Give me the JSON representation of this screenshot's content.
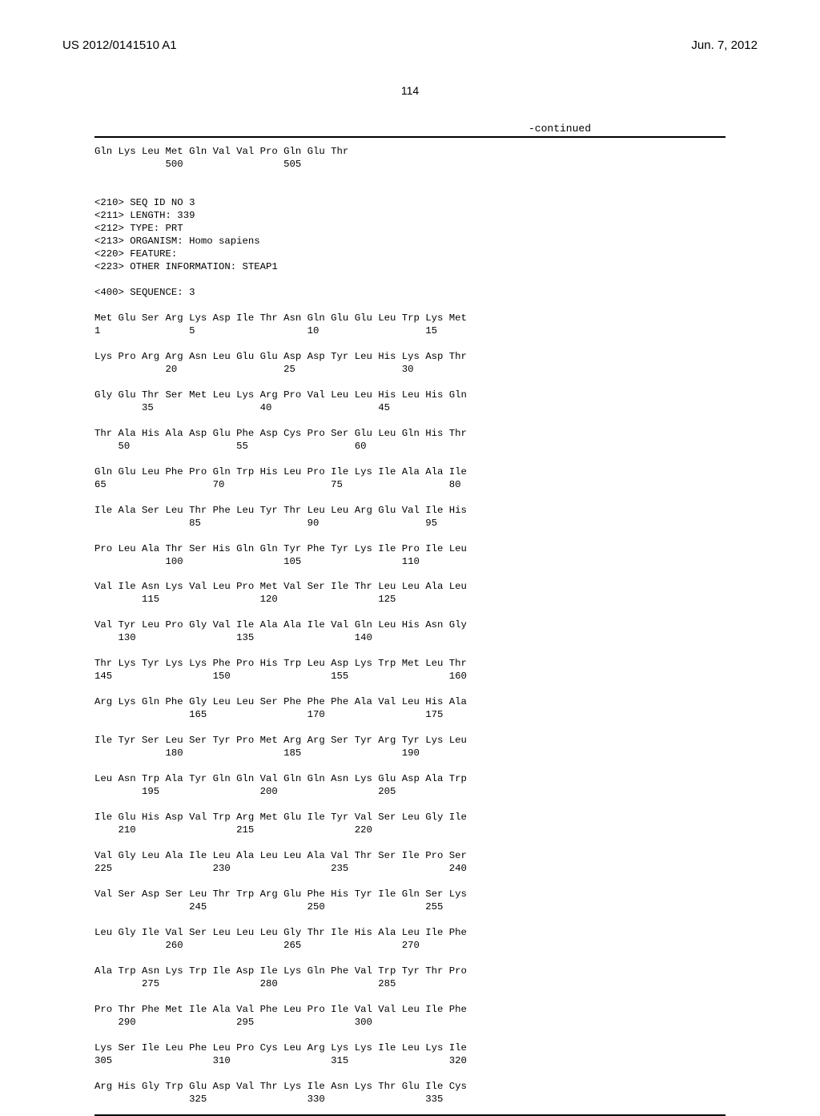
{
  "meta": {
    "pub_number": "US 2012/0141510 A1",
    "pub_date": "Jun. 7, 2012",
    "page_number": "114",
    "continued_label": "-continued"
  },
  "tail_seq": {
    "aa_line": "Gln Lys Leu Met Gln Val Val Pro Gln Glu Thr",
    "num_line": "            500                 505"
  },
  "seq_header": {
    "lines": [
      "<210> SEQ ID NO 3",
      "<211> LENGTH: 339",
      "<212> TYPE: PRT",
      "<213> ORGANISM: Homo sapiens",
      "<220> FEATURE:",
      "<223> OTHER INFORMATION: STEAP1",
      "",
      "<400> SEQUENCE: 3"
    ]
  },
  "sequence_rows": [
    {
      "aa": "Met Glu Ser Arg Lys Asp Ile Thr Asn Gln Glu Glu Leu Trp Lys Met",
      "num": "1               5                   10                  15"
    },
    {
      "aa": "Lys Pro Arg Arg Asn Leu Glu Glu Asp Asp Tyr Leu His Lys Asp Thr",
      "num": "            20                  25                  30"
    },
    {
      "aa": "Gly Glu Thr Ser Met Leu Lys Arg Pro Val Leu Leu His Leu His Gln",
      "num": "        35                  40                  45"
    },
    {
      "aa": "Thr Ala His Ala Asp Glu Phe Asp Cys Pro Ser Glu Leu Gln His Thr",
      "num": "    50                  55                  60"
    },
    {
      "aa": "Gln Glu Leu Phe Pro Gln Trp His Leu Pro Ile Lys Ile Ala Ala Ile",
      "num": "65                  70                  75                  80"
    },
    {
      "aa": "Ile Ala Ser Leu Thr Phe Leu Tyr Thr Leu Leu Arg Glu Val Ile His",
      "num": "                85                  90                  95"
    },
    {
      "aa": "Pro Leu Ala Thr Ser His Gln Gln Tyr Phe Tyr Lys Ile Pro Ile Leu",
      "num": "            100                 105                 110"
    },
    {
      "aa": "Val Ile Asn Lys Val Leu Pro Met Val Ser Ile Thr Leu Leu Ala Leu",
      "num": "        115                 120                 125"
    },
    {
      "aa": "Val Tyr Leu Pro Gly Val Ile Ala Ala Ile Val Gln Leu His Asn Gly",
      "num": "    130                 135                 140"
    },
    {
      "aa": "Thr Lys Tyr Lys Lys Phe Pro His Trp Leu Asp Lys Trp Met Leu Thr",
      "num": "145                 150                 155                 160"
    },
    {
      "aa": "Arg Lys Gln Phe Gly Leu Leu Ser Phe Phe Phe Ala Val Leu His Ala",
      "num": "                165                 170                 175"
    },
    {
      "aa": "Ile Tyr Ser Leu Ser Tyr Pro Met Arg Arg Ser Tyr Arg Tyr Lys Leu",
      "num": "            180                 185                 190"
    },
    {
      "aa": "Leu Asn Trp Ala Tyr Gln Gln Val Gln Gln Asn Lys Glu Asp Ala Trp",
      "num": "        195                 200                 205"
    },
    {
      "aa": "Ile Glu His Asp Val Trp Arg Met Glu Ile Tyr Val Ser Leu Gly Ile",
      "num": "    210                 215                 220"
    },
    {
      "aa": "Val Gly Leu Ala Ile Leu Ala Leu Leu Ala Val Thr Ser Ile Pro Ser",
      "num": "225                 230                 235                 240"
    },
    {
      "aa": "Val Ser Asp Ser Leu Thr Trp Arg Glu Phe His Tyr Ile Gln Ser Lys",
      "num": "                245                 250                 255"
    },
    {
      "aa": "Leu Gly Ile Val Ser Leu Leu Leu Gly Thr Ile His Ala Leu Ile Phe",
      "num": "            260                 265                 270"
    },
    {
      "aa": "Ala Trp Asn Lys Trp Ile Asp Ile Lys Gln Phe Val Trp Tyr Thr Pro",
      "num": "        275                 280                 285"
    },
    {
      "aa": "Pro Thr Phe Met Ile Ala Val Phe Leu Pro Ile Val Val Leu Ile Phe",
      "num": "    290                 295                 300"
    },
    {
      "aa": "Lys Ser Ile Leu Phe Leu Pro Cys Leu Arg Lys Lys Ile Leu Lys Ile",
      "num": "305                 310                 315                 320"
    },
    {
      "aa": "Arg His Gly Trp Glu Asp Val Thr Lys Ile Asn Lys Thr Glu Ile Cys",
      "num": "                325                 330                 335"
    }
  ]
}
